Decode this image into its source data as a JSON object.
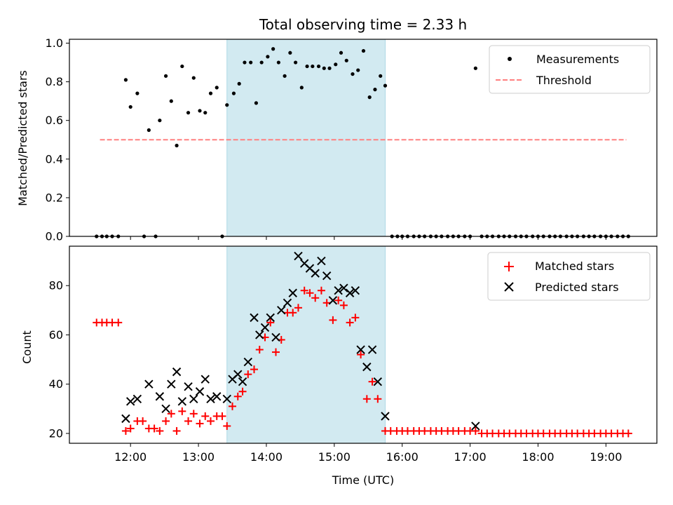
{
  "chart_data": [
    {
      "type": "scatter",
      "panel": "top",
      "title": "Total observing time = 2.33 h",
      "xlabel": "",
      "ylabel": "Matched/Predicted stars",
      "xlim": [
        11.1,
        19.75
      ],
      "ylim": [
        0.0,
        1.02
      ],
      "yticks": [
        0.0,
        0.2,
        0.4,
        0.6,
        0.8,
        1.0
      ],
      "ytick_labels": [
        "0.0",
        "0.2",
        "0.4",
        "0.6",
        "0.8",
        "1.0"
      ],
      "legend_position": "top-right",
      "highlight_span": [
        13.42,
        15.75
      ],
      "highlight_color": "#add8e6",
      "series": [
        {
          "name": "Measurements",
          "marker": "dot",
          "color": "#000000",
          "points": [
            [
              11.5,
              0.0
            ],
            [
              11.58,
              0.0
            ],
            [
              11.65,
              0.0
            ],
            [
              11.73,
              0.0
            ],
            [
              11.82,
              0.0
            ],
            [
              11.93,
              0.81
            ],
            [
              12.0,
              0.67
            ],
            [
              12.1,
              0.74
            ],
            [
              12.2,
              0.0
            ],
            [
              12.27,
              0.55
            ],
            [
              12.37,
              0.0
            ],
            [
              12.43,
              0.6
            ],
            [
              12.52,
              0.83
            ],
            [
              12.6,
              0.7
            ],
            [
              12.68,
              0.47
            ],
            [
              12.76,
              0.88
            ],
            [
              12.85,
              0.64
            ],
            [
              12.93,
              0.82
            ],
            [
              13.02,
              0.65
            ],
            [
              13.1,
              0.64
            ],
            [
              13.18,
              0.74
            ],
            [
              13.27,
              0.77
            ],
            [
              13.35,
              0.0
            ],
            [
              13.42,
              0.68
            ],
            [
              13.52,
              0.74
            ],
            [
              13.6,
              0.79
            ],
            [
              13.68,
              0.9
            ],
            [
              13.77,
              0.9
            ],
            [
              13.85,
              0.69
            ],
            [
              13.93,
              0.9
            ],
            [
              14.02,
              0.93
            ],
            [
              14.1,
              0.97
            ],
            [
              14.18,
              0.9
            ],
            [
              14.27,
              0.83
            ],
            [
              14.35,
              0.95
            ],
            [
              14.43,
              0.9
            ],
            [
              14.52,
              0.77
            ],
            [
              14.6,
              0.88
            ],
            [
              14.68,
              0.88
            ],
            [
              14.77,
              0.88
            ],
            [
              14.85,
              0.87
            ],
            [
              14.93,
              0.87
            ],
            [
              15.02,
              0.89
            ],
            [
              15.1,
              0.95
            ],
            [
              15.18,
              0.91
            ],
            [
              15.27,
              0.84
            ],
            [
              15.35,
              0.86
            ],
            [
              15.43,
              0.96
            ],
            [
              15.52,
              0.72
            ],
            [
              15.6,
              0.76
            ],
            [
              15.68,
              0.83
            ],
            [
              15.75,
              0.78
            ],
            [
              15.85,
              0.0
            ],
            [
              15.93,
              0.0
            ],
            [
              16.0,
              0.0
            ],
            [
              16.08,
              0.0
            ],
            [
              16.17,
              0.0
            ],
            [
              16.25,
              0.0
            ],
            [
              16.33,
              0.0
            ],
            [
              16.42,
              0.0
            ],
            [
              16.5,
              0.0
            ],
            [
              16.58,
              0.0
            ],
            [
              16.67,
              0.0
            ],
            [
              16.75,
              0.0
            ],
            [
              16.83,
              0.0
            ],
            [
              16.92,
              0.0
            ],
            [
              17.0,
              0.0
            ],
            [
              17.08,
              0.87
            ],
            [
              17.17,
              0.0
            ],
            [
              17.25,
              0.0
            ],
            [
              17.33,
              0.0
            ],
            [
              17.42,
              0.0
            ],
            [
              17.5,
              0.0
            ],
            [
              17.58,
              0.0
            ],
            [
              17.67,
              0.0
            ],
            [
              17.75,
              0.0
            ],
            [
              17.83,
              0.0
            ],
            [
              17.92,
              0.0
            ],
            [
              18.0,
              0.0
            ],
            [
              18.08,
              0.0
            ],
            [
              18.17,
              0.0
            ],
            [
              18.25,
              0.0
            ],
            [
              18.33,
              0.0
            ],
            [
              18.42,
              0.0
            ],
            [
              18.5,
              0.0
            ],
            [
              18.58,
              0.0
            ],
            [
              18.67,
              0.0
            ],
            [
              18.75,
              0.0
            ],
            [
              18.83,
              0.0
            ],
            [
              18.92,
              0.0
            ],
            [
              19.0,
              0.0
            ],
            [
              19.08,
              0.0
            ],
            [
              19.17,
              0.0
            ],
            [
              19.25,
              0.0
            ],
            [
              19.33,
              0.0
            ]
          ]
        },
        {
          "name": "Threshold",
          "type": "line",
          "style": "dashed",
          "color": "#ff8080",
          "points": [
            [
              11.55,
              0.5
            ],
            [
              19.3,
              0.5
            ]
          ]
        }
      ]
    },
    {
      "type": "scatter",
      "panel": "bottom",
      "title": "",
      "xlabel": "Time (UTC)",
      "ylabel": "Count",
      "xlim": [
        11.1,
        19.75
      ],
      "ylim": [
        16,
        96
      ],
      "xticks": [
        12,
        13,
        14,
        15,
        16,
        17,
        18,
        19
      ],
      "xtick_labels": [
        "12:00",
        "13:00",
        "14:00",
        "15:00",
        "16:00",
        "17:00",
        "18:00",
        "19:00"
      ],
      "yticks": [
        20,
        40,
        60,
        80
      ],
      "ytick_labels": [
        "20",
        "40",
        "60",
        "80"
      ],
      "legend_position": "top-right",
      "highlight_span": [
        13.42,
        15.75
      ],
      "highlight_color": "#add8e6",
      "series": [
        {
          "name": "Matched stars",
          "marker": "plus",
          "color": "#ff0000",
          "points": [
            [
              11.5,
              65
            ],
            [
              11.58,
              65
            ],
            [
              11.65,
              65
            ],
            [
              11.73,
              65
            ],
            [
              11.82,
              65
            ],
            [
              11.93,
              21
            ],
            [
              12.0,
              22
            ],
            [
              12.1,
              25
            ],
            [
              12.18,
              25
            ],
            [
              12.27,
              22
            ],
            [
              12.35,
              22
            ],
            [
              12.43,
              21
            ],
            [
              12.52,
              25
            ],
            [
              12.6,
              28
            ],
            [
              12.68,
              21
            ],
            [
              12.76,
              29
            ],
            [
              12.85,
              25
            ],
            [
              12.93,
              28
            ],
            [
              13.02,
              24
            ],
            [
              13.1,
              27
            ],
            [
              13.18,
              25
            ],
            [
              13.27,
              27
            ],
            [
              13.35,
              27
            ],
            [
              13.42,
              23
            ],
            [
              13.5,
              31
            ],
            [
              13.58,
              35
            ],
            [
              13.65,
              37
            ],
            [
              13.73,
              44
            ],
            [
              13.82,
              46
            ],
            [
              13.9,
              54
            ],
            [
              13.98,
              59
            ],
            [
              14.06,
              65
            ],
            [
              14.14,
              53
            ],
            [
              14.22,
              58
            ],
            [
              14.31,
              69
            ],
            [
              14.39,
              69
            ],
            [
              14.47,
              71
            ],
            [
              14.56,
              78
            ],
            [
              14.64,
              77
            ],
            [
              14.72,
              75
            ],
            [
              14.81,
              78
            ],
            [
              14.89,
              73
            ],
            [
              14.98,
              66
            ],
            [
              15.06,
              74
            ],
            [
              15.14,
              72
            ],
            [
              15.23,
              65
            ],
            [
              15.31,
              67
            ],
            [
              15.39,
              52
            ],
            [
              15.48,
              34
            ],
            [
              15.56,
              41
            ],
            [
              15.64,
              34
            ],
            [
              15.75,
              21
            ],
            [
              15.83,
              21
            ],
            [
              15.92,
              21
            ],
            [
              16.0,
              21
            ],
            [
              16.08,
              21
            ],
            [
              16.17,
              21
            ],
            [
              16.25,
              21
            ],
            [
              16.33,
              21
            ],
            [
              16.42,
              21
            ],
            [
              16.5,
              21
            ],
            [
              16.58,
              21
            ],
            [
              16.67,
              21
            ],
            [
              16.75,
              21
            ],
            [
              16.83,
              21
            ],
            [
              16.92,
              21
            ],
            [
              17.0,
              21
            ],
            [
              17.08,
              21
            ],
            [
              17.17,
              20
            ],
            [
              17.25,
              20
            ],
            [
              17.33,
              20
            ],
            [
              17.42,
              20
            ],
            [
              17.5,
              20
            ],
            [
              17.58,
              20
            ],
            [
              17.67,
              20
            ],
            [
              17.75,
              20
            ],
            [
              17.83,
              20
            ],
            [
              17.92,
              20
            ],
            [
              18.0,
              20
            ],
            [
              18.08,
              20
            ],
            [
              18.17,
              20
            ],
            [
              18.25,
              20
            ],
            [
              18.33,
              20
            ],
            [
              18.42,
              20
            ],
            [
              18.5,
              20
            ],
            [
              18.58,
              20
            ],
            [
              18.67,
              20
            ],
            [
              18.75,
              20
            ],
            [
              18.83,
              20
            ],
            [
              18.92,
              20
            ],
            [
              19.0,
              20
            ],
            [
              19.08,
              20
            ],
            [
              19.17,
              20
            ],
            [
              19.25,
              20
            ],
            [
              19.33,
              20
            ]
          ]
        },
        {
          "name": "Predicted stars",
          "marker": "x",
          "color": "#000000",
          "points": [
            [
              11.93,
              26
            ],
            [
              12.0,
              33
            ],
            [
              12.1,
              34
            ],
            [
              12.27,
              40
            ],
            [
              12.43,
              35
            ],
            [
              12.52,
              30
            ],
            [
              12.6,
              40
            ],
            [
              12.68,
              45
            ],
            [
              12.76,
              33
            ],
            [
              12.85,
              39
            ],
            [
              12.93,
              34
            ],
            [
              13.02,
              37
            ],
            [
              13.1,
              42
            ],
            [
              13.18,
              34
            ],
            [
              13.27,
              35
            ],
            [
              13.42,
              34
            ],
            [
              13.5,
              42
            ],
            [
              13.58,
              44
            ],
            [
              13.65,
              41
            ],
            [
              13.73,
              49
            ],
            [
              13.82,
              67
            ],
            [
              13.9,
              60
            ],
            [
              13.98,
              63
            ],
            [
              14.06,
              67
            ],
            [
              14.14,
              59
            ],
            [
              14.22,
              70
            ],
            [
              14.31,
              73
            ],
            [
              14.39,
              77
            ],
            [
              14.47,
              92
            ],
            [
              14.56,
              89
            ],
            [
              14.64,
              87
            ],
            [
              14.72,
              85
            ],
            [
              14.81,
              90
            ],
            [
              14.89,
              84
            ],
            [
              14.98,
              74
            ],
            [
              15.06,
              78
            ],
            [
              15.14,
              79
            ],
            [
              15.23,
              77
            ],
            [
              15.31,
              78
            ],
            [
              15.39,
              54
            ],
            [
              15.48,
              47
            ],
            [
              15.56,
              54
            ],
            [
              15.64,
              41
            ],
            [
              15.75,
              27
            ],
            [
              17.08,
              23
            ]
          ]
        }
      ]
    }
  ]
}
